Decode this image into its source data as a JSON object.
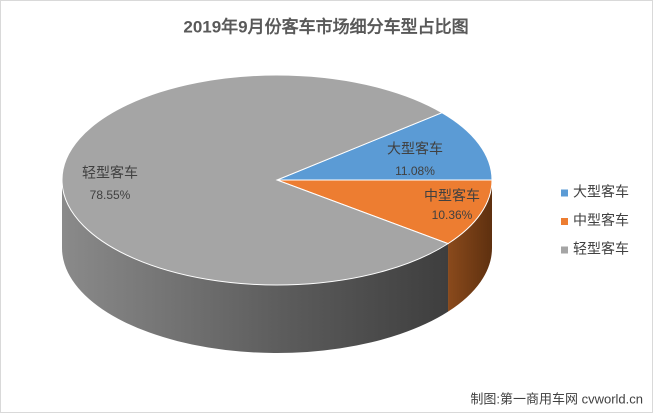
{
  "chart_data": {
    "type": "pie3d",
    "title": "2019年9月份客车市场细分车型占比图",
    "categories": [
      "大型客车",
      "中型客车",
      "轻型客车"
    ],
    "values": [
      11.08,
      10.36,
      78.55
    ],
    "value_labels": [
      "11.08%",
      "10.36%",
      "78.55%"
    ],
    "colors": [
      "#5b9bd5",
      "#ed7d31",
      "#a5a5a5"
    ],
    "legend": "right",
    "source": "制图:第一商用车网 cvworld.cn"
  }
}
